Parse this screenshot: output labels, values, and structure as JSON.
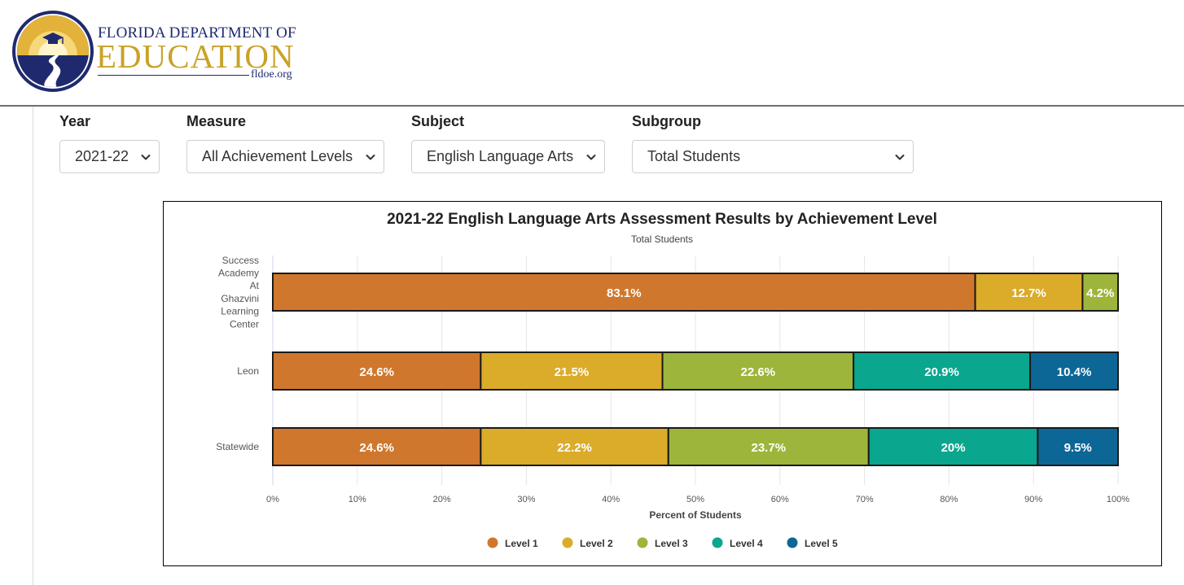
{
  "header": {
    "brand_top": "FLORIDA DEPARTMENT OF",
    "brand_main": "EDUCATION",
    "brand_url": "fldoe.org",
    "colors": {
      "navy": "#1f2a6e",
      "gold": "#c9a227"
    }
  },
  "filters": [
    {
      "label": "Year",
      "value": "2021-22",
      "icon": "chevron-down-icon"
    },
    {
      "label": "Measure",
      "value": "All Achievement Levels",
      "icon": "chevron-down-icon"
    },
    {
      "label": "Subject",
      "value": "English Language Arts",
      "icon": "chevron-down-icon"
    },
    {
      "label": "Subgroup",
      "value": "Total Students",
      "icon": "chevron-down-icon"
    }
  ],
  "chart_data": {
    "type": "bar",
    "orientation": "horizontal",
    "stacked": true,
    "title": "2021-22 English Language Arts Assessment Results by Achievement Level",
    "subtitle": "Total Students",
    "xlabel": "Percent of Students",
    "ylabel": "",
    "xlim": [
      0,
      100
    ],
    "x_ticks": [
      "0%",
      "10%",
      "20%",
      "30%",
      "40%",
      "50%",
      "60%",
      "70%",
      "80%",
      "90%",
      "100%"
    ],
    "grid": true,
    "legend_position": "bottom-center",
    "categories": [
      [
        "Success",
        "Academy",
        "At",
        "Ghazvini",
        "Learning",
        "Center"
      ],
      [
        "Leon"
      ],
      [
        "Statewide"
      ]
    ],
    "series": [
      {
        "name": "Level 1",
        "color": "#cf782d",
        "values": [
          83.1,
          24.6,
          24.6
        ],
        "labels": [
          "83.1%",
          "24.6%",
          "24.6%"
        ]
      },
      {
        "name": "Level 2",
        "color": "#dbab2a",
        "values": [
          12.7,
          21.5,
          22.2
        ],
        "labels": [
          "12.7%",
          "21.5%",
          "22.2%"
        ]
      },
      {
        "name": "Level 3",
        "color": "#9db53a",
        "values": [
          4.2,
          22.6,
          23.7
        ],
        "labels": [
          "4.2%",
          "22.6%",
          "23.7%"
        ]
      },
      {
        "name": "Level 4",
        "color": "#0aa68d",
        "values": [
          0,
          20.9,
          20
        ],
        "labels": [
          "",
          "20.9%",
          "20%"
        ]
      },
      {
        "name": "Level 5",
        "color": "#0d6796",
        "values": [
          0,
          10.4,
          9.5
        ],
        "labels": [
          "",
          "10.4%",
          "9.5%"
        ]
      }
    ]
  }
}
